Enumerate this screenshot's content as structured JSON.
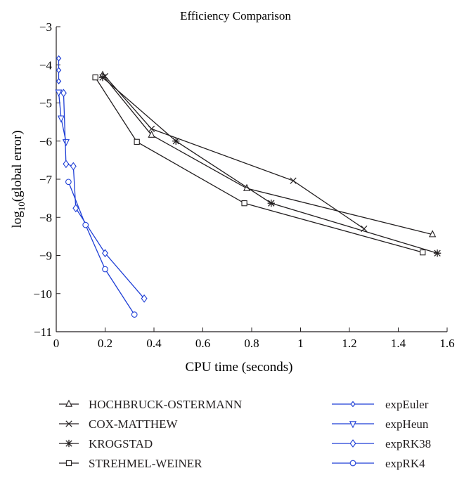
{
  "chart_data": {
    "type": "line",
    "title": "Efficiency Comparison",
    "xlabel": "CPU time (seconds)",
    "ylabel_prefix": "log",
    "ylabel_sub": "10",
    "ylabel_suffix": "(global error)",
    "xlim": [
      0,
      1.6
    ],
    "ylim": [
      -11,
      -3
    ],
    "xticks": [
      0,
      0.2,
      0.4,
      0.6,
      0.8,
      1,
      1.2,
      1.4,
      1.6
    ],
    "xtick_labels": [
      "0",
      "0.2",
      "0.4",
      "0.6",
      "0.8",
      "1",
      "1.2",
      "1.4",
      "1.6"
    ],
    "yticks": [
      -3,
      -4,
      -5,
      -6,
      -7,
      -8,
      -9,
      -10,
      -11
    ],
    "ytick_labels": [
      "−3",
      "−4",
      "−5",
      "−6",
      "−7",
      "−8",
      "−9",
      "−10",
      "−11"
    ],
    "grid": false,
    "legend_position": "below-plot",
    "series": [
      {
        "name": "HOCHBRUCK-OSTERMANN",
        "color": "#231f20",
        "marker": "triangle-up",
        "x": [
          0.19,
          0.39,
          0.78,
          1.54
        ],
        "y": [
          -4.27,
          -5.84,
          -7.24,
          -8.45
        ]
      },
      {
        "name": "COX-MATTHEW",
        "color": "#231f20",
        "marker": "x",
        "x": [
          0.2,
          0.39,
          0.97,
          1.26
        ],
        "y": [
          -4.3,
          -5.68,
          -7.04,
          -8.3
        ]
      },
      {
        "name": "KROGSTAD",
        "color": "#231f20",
        "marker": "asterisk",
        "x": [
          0.19,
          0.49,
          0.88,
          1.56
        ],
        "y": [
          -4.33,
          -6.0,
          -7.63,
          -8.94
        ]
      },
      {
        "name": "STREHMEL-WEINER",
        "color": "#231f20",
        "marker": "square",
        "x": [
          0.16,
          0.33,
          0.77,
          1.5
        ],
        "y": [
          -4.33,
          -6.02,
          -7.63,
          -8.92
        ]
      },
      {
        "name": "expEuler",
        "color": "#1f3fd6",
        "marker": "diamond-small",
        "x": [
          0.01,
          0.01,
          0.01
        ],
        "y": [
          -3.83,
          -4.14,
          -4.43
        ]
      },
      {
        "name": "expHeun",
        "color": "#1f3fd6",
        "marker": "triangle-down",
        "x": [
          0.01,
          0.02,
          0.04
        ],
        "y": [
          -4.72,
          -5.4,
          -6.02
        ]
      },
      {
        "name": "expRK38",
        "color": "#1f3fd6",
        "marker": "diamond",
        "x": [
          0.03,
          0.04,
          0.07,
          0.08,
          0.2,
          0.36
        ],
        "y": [
          -4.74,
          -6.6,
          -6.66,
          -7.76,
          -8.94,
          -10.13
        ]
      },
      {
        "name": "expRK4",
        "color": "#1f3fd6",
        "marker": "circle",
        "x": [
          0.05,
          0.12,
          0.2,
          0.32
        ],
        "y": [
          -7.07,
          -8.2,
          -9.36,
          -10.55
        ]
      }
    ]
  }
}
